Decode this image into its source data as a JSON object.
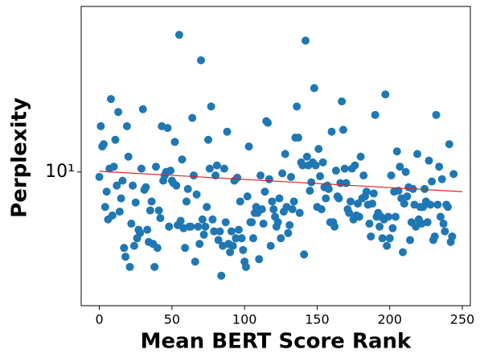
{
  "chart_data": {
    "type": "scatter",
    "x_label": "Mean BERT Score Rank",
    "y_label": "Perplexity",
    "xlim": [
      -12.5,
      255.5
    ],
    "ylim": [
      1.42,
      112
    ],
    "xticks": [
      0,
      50,
      100,
      150,
      200,
      250
    ],
    "yticks": [
      {
        "value": 10,
        "label": "10¹"
      }
    ],
    "log_y": true,
    "color": "#1f77b4",
    "x": [
      0,
      1,
      2,
      3,
      4,
      5,
      6,
      7,
      8,
      9,
      10,
      11,
      12,
      13,
      14,
      15,
      16,
      17,
      18,
      19,
      20,
      21,
      22,
      23,
      24,
      25,
      26,
      27,
      28,
      29,
      30,
      31,
      32,
      33,
      34,
      35,
      36,
      37,
      38,
      39,
      40,
      41,
      42,
      43,
      44,
      45,
      46,
      47,
      48,
      49,
      50,
      51,
      52,
      53,
      54,
      55,
      56,
      57,
      58,
      59,
      60,
      61,
      62,
      63,
      64,
      65,
      66,
      67,
      68,
      69,
      70,
      71,
      72,
      73,
      74,
      75,
      76,
      77,
      78,
      79,
      80,
      81,
      82,
      83,
      84,
      85,
      86,
      87,
      88,
      89,
      90,
      91,
      92,
      93,
      94,
      95,
      96,
      97,
      98,
      99,
      100,
      101,
      102,
      103,
      104,
      105,
      106,
      107,
      108,
      109,
      110,
      111,
      112,
      113,
      114,
      115,
      116,
      117,
      118,
      119,
      120,
      121,
      122,
      123,
      124,
      125,
      126,
      127,
      128,
      129,
      130,
      131,
      132,
      133,
      134,
      135,
      136,
      137,
      138,
      139,
      140,
      141,
      142,
      143,
      144,
      145,
      146,
      147,
      148,
      149,
      150,
      151,
      152,
      153,
      154,
      155,
      156,
      157,
      158,
      159,
      160,
      161,
      162,
      163,
      164,
      165,
      166,
      167,
      168,
      169,
      170,
      171,
      172,
      173,
      174,
      175,
      176,
      177,
      178,
      179,
      180,
      181,
      182,
      183,
      184,
      185,
      186,
      187,
      188,
      189,
      190,
      191,
      192,
      193,
      194,
      195,
      196,
      197,
      198,
      199,
      200,
      201,
      202,
      203,
      204,
      205,
      206,
      207,
      208,
      209,
      210,
      211,
      212,
      213,
      214,
      215,
      216,
      217,
      218,
      219,
      220,
      221,
      222,
      223,
      224,
      225,
      226,
      227,
      228,
      229,
      230,
      231,
      232,
      233,
      234,
      235,
      236,
      237,
      238,
      239,
      240,
      241,
      242,
      243,
      244
    ],
    "values": [
      9.3,
      19.5,
      14.5,
      15,
      6.0,
      7.5,
      5.0,
      10.5,
      29,
      5.3,
      10.8,
      16,
      8.2,
      24,
      5.6,
      6.8,
      8.8,
      3.3,
      2.9,
      19.5,
      12.5,
      2.5,
      4.7,
      8.2,
      3.4,
      6.4,
      3.8,
      4.3,
      4.1,
      10.5,
      25,
      7.7,
      8,
      4.3,
      3.6,
      5.7,
      6.5,
      3.5,
      2.5,
      10.8,
      3.3,
      5.7,
      5.1,
      19.5,
      8.8,
      9.5,
      10,
      19,
      4.5,
      10.2,
      8.8,
      8.5,
      15.5,
      8.2,
      4.6,
      74,
      4.9,
      12,
      4.4,
      3.3,
      6.5,
      7.8,
      4.5,
      4.5,
      22,
      9.5,
      2.7,
      7.2,
      4.5,
      3.5,
      51,
      5,
      4,
      4.5,
      6,
      16,
      10.5,
      26,
      5,
      4.2,
      9.5,
      11,
      3.7,
      4.2,
      2.2,
      3.4,
      10.5,
      4.8,
      18,
      3.5,
      3.1,
      4.2,
      3.4,
      8.8,
      3.8,
      9.2,
      4.3,
      6.5,
      3.8,
      3.2,
      2.7,
      2.5,
      7,
      14.5,
      4.8,
      4.8,
      3.8,
      5.5,
      6,
      5.5,
      2.8,
      9.5,
      5.8,
      4.7,
      7.5,
      21,
      20.5,
      9,
      3.4,
      6.5,
      5.8,
      5.2,
      4.5,
      4.8,
      6.8,
      3.8,
      9.8,
      5.6,
      13,
      6,
      4.1,
      4.6,
      9.3,
      5.8,
      6.5,
      16.5,
      26,
      16.5,
      5.5,
      11.5,
      11,
      3.0,
      68,
      12.5,
      11,
      7.6,
      8.6,
      11.5,
      34,
      11,
      6,
      14,
      9.4,
      5.8,
      11.5,
      8,
      6.8,
      8.2,
      7.8,
      4.8,
      18,
      4.8,
      4.5,
      10.2,
      7,
      6.8,
      8.5,
      28,
      18.5,
      10.5,
      8.5,
      5.8,
      5.5,
      6.5,
      10.5,
      5,
      11,
      5.3,
      6.3,
      5.2,
      12.5,
      6.8,
      9.5,
      7,
      7.5,
      6.2,
      4.7,
      3.9,
      6.3,
      7.3,
      23,
      5.2,
      5.5,
      4.5,
      5.2,
      3.8,
      5,
      31,
      3.4,
      5.2,
      3.8,
      9.5,
      4.4,
      7.5,
      5.2,
      13.5,
      7.6,
      10.8,
      6.8,
      3.1,
      6.3,
      10,
      7,
      8,
      3.7,
      4.8,
      7.8,
      6.2,
      4.5,
      13,
      5,
      6,
      4.7,
      6,
      7.8,
      6.5,
      4.8,
      11.8,
      6.2,
      8.7,
      3.7,
      3.9,
      23,
      6.2,
      10.8,
      5.2,
      9,
      4.7,
      4.2,
      6.2,
      6,
      15,
      3.6,
      3.9,
      9.7
    ],
    "fit_line": {
      "color": "#d62728",
      "x": [
        0,
        250
      ],
      "values": [
        10.1,
        7.5
      ]
    }
  }
}
